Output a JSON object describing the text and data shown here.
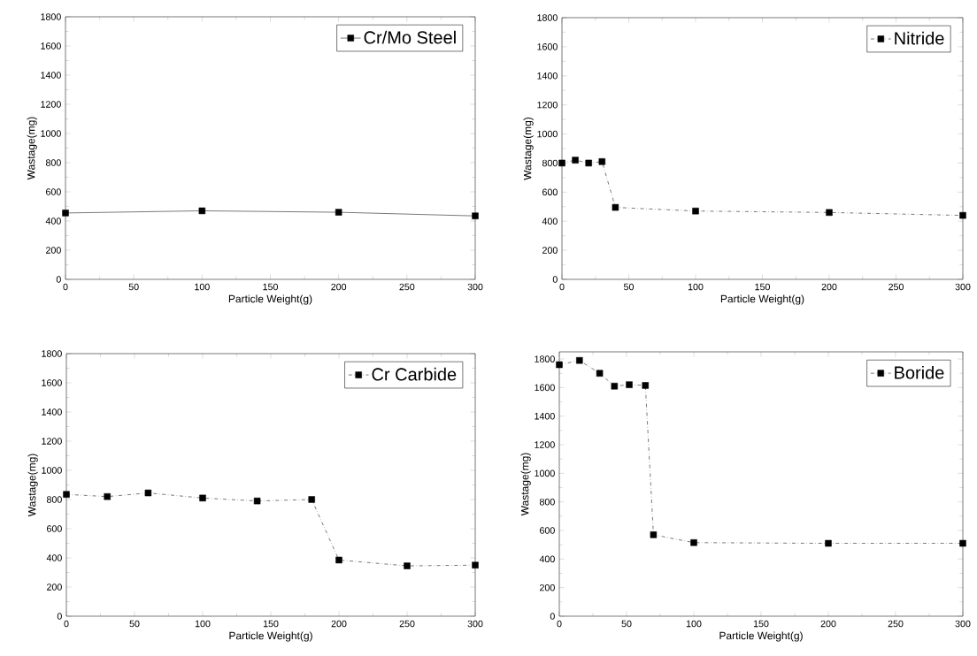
{
  "chart_data": [
    {
      "type": "line",
      "xlabel": "Particle Weight(g)",
      "ylabel": "Wastage(mg)",
      "xlim": [
        0,
        300
      ],
      "xticks": [
        0,
        50,
        100,
        150,
        200,
        250,
        300
      ],
      "ylim": [
        0,
        1800
      ],
      "yticks": [
        0,
        200,
        400,
        600,
        800,
        1000,
        1200,
        1400,
        1600,
        1800
      ],
      "legend": "top right",
      "marker": "square",
      "line_style": "solid",
      "series": [
        {
          "name": "Cr/Mo Steel",
          "color": "#000000",
          "x": [
            0,
            100,
            200,
            300
          ],
          "values": [
            455,
            470,
            460,
            435
          ]
        }
      ]
    },
    {
      "type": "line",
      "xlabel": "Particle Weight(g)",
      "ylabel": "Wastage(mg)",
      "xlim": [
        0,
        300
      ],
      "xticks": [
        0,
        50,
        100,
        150,
        200,
        250,
        300
      ],
      "ylim": [
        0,
        1800
      ],
      "yticks": [
        0,
        200,
        400,
        600,
        800,
        1000,
        1200,
        1400,
        1600,
        1800
      ],
      "legend": "top right",
      "marker": "square",
      "line_style": "dashed",
      "series": [
        {
          "name": "Nitride",
          "color": "#000000",
          "x": [
            0,
            10,
            20,
            30,
            40,
            100,
            200,
            300
          ],
          "values": [
            800,
            820,
            800,
            810,
            495,
            470,
            460,
            440
          ]
        }
      ]
    },
    {
      "type": "line",
      "xlabel": "Particle Weight(g)",
      "ylabel": "Wastage(mg)",
      "xlim": [
        0,
        300
      ],
      "xticks": [
        0,
        50,
        100,
        150,
        200,
        250,
        300
      ],
      "ylim": [
        0,
        1800
      ],
      "yticks": [
        0,
        200,
        400,
        600,
        800,
        1000,
        1200,
        1400,
        1600,
        1800
      ],
      "legend": "top right",
      "marker": "square",
      "line_style": "dashed",
      "series": [
        {
          "name": "Cr Carbide",
          "color": "#000000",
          "x": [
            0,
            30,
            60,
            100,
            140,
            180,
            200,
            250,
            300
          ],
          "values": [
            835,
            820,
            845,
            810,
            790,
            800,
            385,
            345,
            350
          ]
        }
      ]
    },
    {
      "type": "line",
      "xlabel": "Particle Weight(g)",
      "ylabel": "Wastage(mg)",
      "xlim": [
        0,
        300
      ],
      "xticks": [
        0,
        50,
        100,
        150,
        200,
        250,
        300
      ],
      "ylim": [
        0,
        1850
      ],
      "yticks": [
        0,
        200,
        400,
        600,
        800,
        1000,
        1200,
        1400,
        1600,
        1800
      ],
      "legend": "top right",
      "marker": "square",
      "line_style": "dashed",
      "series": [
        {
          "name": "Boride",
          "color": "#000000",
          "x": [
            0,
            15,
            30,
            41,
            52,
            64,
            70,
            100,
            200,
            300
          ],
          "values": [
            1760,
            1790,
            1700,
            1610,
            1620,
            1615,
            570,
            515,
            510,
            510
          ]
        }
      ]
    }
  ]
}
